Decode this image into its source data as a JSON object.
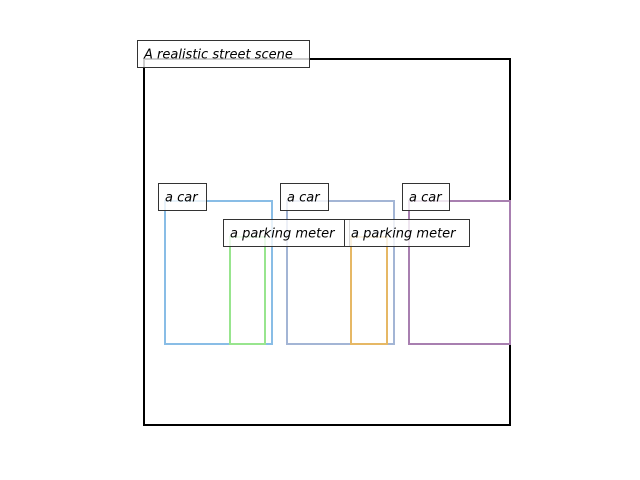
{
  "scene": {
    "title": "A realistic street scene",
    "frame_color": "#000000"
  },
  "objects": [
    {
      "label": "a car",
      "color": "#89bde6"
    },
    {
      "label": "a parking meter",
      "color": "#98e58e"
    },
    {
      "label": "a car",
      "color": "#a3b5d5"
    },
    {
      "label": "a parking meter",
      "color": "#e6b865"
    },
    {
      "label": "a car",
      "color": "#a87fb0"
    }
  ]
}
